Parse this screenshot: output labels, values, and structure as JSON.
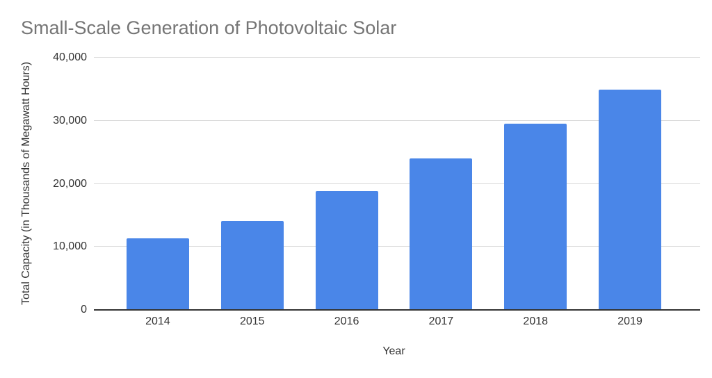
{
  "chart_data": {
    "type": "bar",
    "title": "Small-Scale Generation of Photovoltaic Solar",
    "xlabel": "Year",
    "ylabel": "Total Capacity (in Thousands of Megawatt Hours)",
    "categories": [
      "2014",
      "2015",
      "2016",
      "2017",
      "2018",
      "2019"
    ],
    "values": [
      11300,
      14100,
      18800,
      24000,
      29500,
      34900
    ],
    "ylim": [
      0,
      40000
    ],
    "yticks": [
      0,
      10000,
      20000,
      30000,
      40000
    ],
    "ytick_labels": [
      "0",
      "10,000",
      "20,000",
      "30,000",
      "40,000"
    ],
    "grid": true,
    "legend": "none",
    "bar_color": "#4a86e8",
    "title_color": "#757575",
    "axis_text_color": "#333333",
    "grid_color": "#d9d9d9",
    "axis_line_color": "#333333",
    "background_color": "#ffffff"
  }
}
